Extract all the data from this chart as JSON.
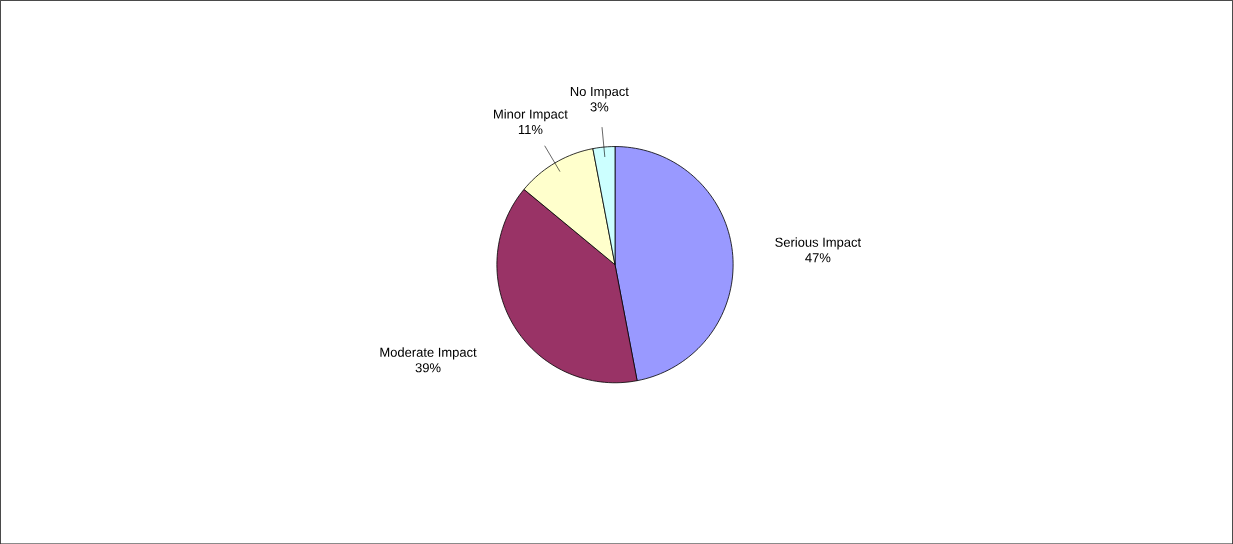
{
  "chart_data": {
    "type": "pie",
    "categories": [
      "Serious Impact",
      "Moderate Impact",
      "Minor Impact",
      "No Impact"
    ],
    "values": [
      47,
      39,
      11,
      3
    ],
    "value_labels": [
      "47%",
      "39%",
      "11%",
      "3%"
    ],
    "colors": [
      "#9999ff",
      "#993366",
      "#ffffcc",
      "#ccffff"
    ]
  }
}
